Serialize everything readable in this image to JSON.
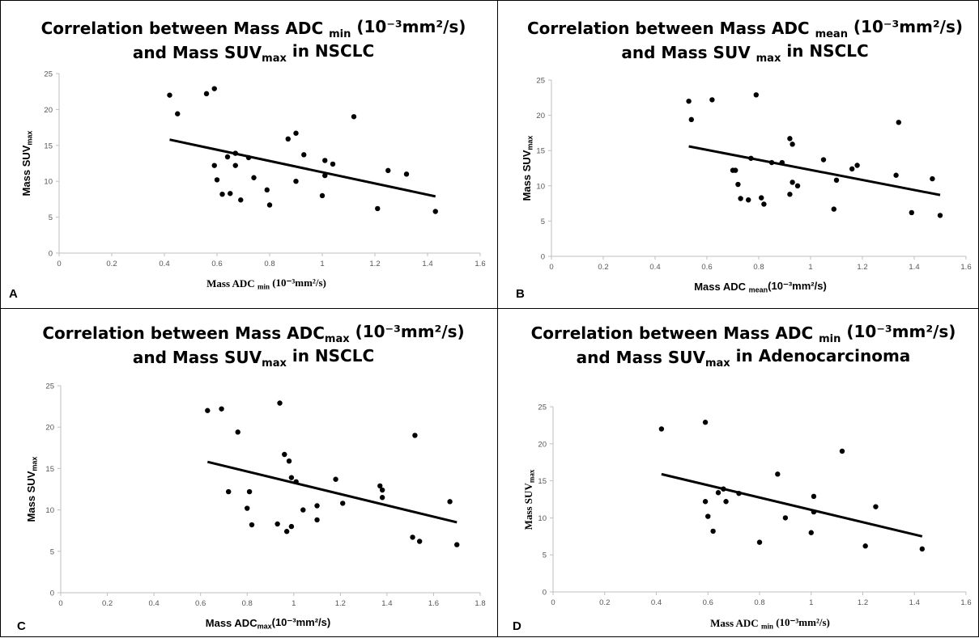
{
  "chart_data": [
    {
      "type": "scatter",
      "panel_letter": "A",
      "title": {
        "line1": [
          {
            "t": "Correlation between Mass ADC "
          },
          {
            "t": "min",
            "sub": true
          },
          {
            "t": "  (10⁻³mm²/s)"
          }
        ],
        "line2": [
          {
            "t": "and Mass SUV"
          },
          {
            "t": "max",
            "sub": true
          },
          {
            "t": " in NSCLC"
          }
        ]
      },
      "xlabel": [
        {
          "t": "Mass ADC "
        },
        {
          "t": "min",
          "sub": true
        },
        {
          "t": " (10⁻³mm²/s)"
        }
      ],
      "ylabel": [
        {
          "t": "Mass SUV"
        },
        {
          "t": "max",
          "sub": true
        }
      ],
      "xlabel_font": "serif",
      "xlim": [
        0,
        1.6
      ],
      "ylim": [
        0,
        25
      ],
      "xticks": [
        "0",
        "0.2",
        "0.4",
        "0.6",
        "0.8",
        "1",
        "1.2",
        "1.4",
        "1.6"
      ],
      "yticks": [
        "0",
        "5",
        "10",
        "15",
        "20",
        "25"
      ],
      "grid": false,
      "trendline": {
        "x": [
          0.42,
          1.43
        ],
        "y": [
          15.8,
          7.9
        ]
      },
      "points": [
        [
          0.42,
          22.0
        ],
        [
          0.45,
          19.4
        ],
        [
          0.56,
          22.2
        ],
        [
          0.59,
          22.9
        ],
        [
          0.59,
          12.2
        ],
        [
          0.6,
          10.2
        ],
        [
          0.62,
          8.2
        ],
        [
          0.64,
          13.4
        ],
        [
          0.65,
          8.3
        ],
        [
          0.67,
          13.9
        ],
        [
          0.67,
          12.2
        ],
        [
          0.69,
          7.4
        ],
        [
          0.72,
          13.3
        ],
        [
          0.74,
          10.5
        ],
        [
          0.79,
          8.8
        ],
        [
          0.8,
          6.7
        ],
        [
          0.87,
          15.9
        ],
        [
          0.9,
          16.7
        ],
        [
          0.9,
          10.0
        ],
        [
          0.93,
          13.7
        ],
        [
          1.0,
          8.0
        ],
        [
          1.01,
          12.9
        ],
        [
          1.01,
          10.8
        ],
        [
          1.04,
          12.4
        ],
        [
          1.12,
          19.0
        ],
        [
          1.21,
          6.2
        ],
        [
          1.25,
          11.5
        ],
        [
          1.32,
          11.0
        ],
        [
          1.43,
          5.8
        ]
      ]
    },
    {
      "type": "scatter",
      "panel_letter": "B",
      "title": {
        "line1": [
          {
            "t": "Correlation between Mass ADC "
          },
          {
            "t": "mean",
            "sub": true
          },
          {
            "t": " (10⁻³mm²/s)"
          }
        ],
        "line2": [
          {
            "t": "and Mass SUV "
          },
          {
            "t": "max",
            "sub": true
          },
          {
            "t": " in NSCLC"
          }
        ]
      },
      "xlabel": [
        {
          "t": "Mass ADC "
        },
        {
          "t": "mean",
          "sub": true
        },
        {
          "t": "(10⁻³mm²/s)"
        }
      ],
      "ylabel": [
        {
          "t": "Mass SUV"
        },
        {
          "t": "max",
          "sub": true
        }
      ],
      "xlabel_font": "sans",
      "xlim": [
        0,
        1.6
      ],
      "ylim": [
        0,
        25
      ],
      "xticks": [
        "0",
        "0.2",
        "0.4",
        "0.6",
        "0.8",
        "1",
        "1.2",
        "1.4",
        "1.6"
      ],
      "yticks": [
        "0",
        "5",
        "10",
        "15",
        "20",
        "25"
      ],
      "grid": false,
      "trendline": {
        "x": [
          0.53,
          1.5
        ],
        "y": [
          15.6,
          8.7
        ]
      },
      "points": [
        [
          0.53,
          22.0
        ],
        [
          0.54,
          19.4
        ],
        [
          0.62,
          22.2
        ],
        [
          0.79,
          22.9
        ],
        [
          0.7,
          12.2
        ],
        [
          0.71,
          12.2
        ],
        [
          0.72,
          10.2
        ],
        [
          0.73,
          8.2
        ],
        [
          0.76,
          8.0
        ],
        [
          0.77,
          13.9
        ],
        [
          0.81,
          8.3
        ],
        [
          0.82,
          7.4
        ],
        [
          0.85,
          13.3
        ],
        [
          0.89,
          13.3
        ],
        [
          0.92,
          16.7
        ],
        [
          0.93,
          15.9
        ],
        [
          0.92,
          8.8
        ],
        [
          0.93,
          10.5
        ],
        [
          0.95,
          10.0
        ],
        [
          1.05,
          13.7
        ],
        [
          1.09,
          6.7
        ],
        [
          1.1,
          10.8
        ],
        [
          1.16,
          12.4
        ],
        [
          1.18,
          12.9
        ],
        [
          1.33,
          11.5
        ],
        [
          1.34,
          19.0
        ],
        [
          1.39,
          6.2
        ],
        [
          1.47,
          11.0
        ],
        [
          1.5,
          5.8
        ]
      ]
    },
    {
      "type": "scatter",
      "panel_letter": "C",
      "title": {
        "line1": [
          {
            "t": "Correlation between Mass ADC"
          },
          {
            "t": "max",
            "sub": true
          },
          {
            "t": " (10⁻³mm²/s)"
          }
        ],
        "line2": [
          {
            "t": "and Mass SUV"
          },
          {
            "t": "max",
            "sub": true
          },
          {
            "t": " in NSCLC"
          }
        ]
      },
      "xlabel": [
        {
          "t": "Mass ADC"
        },
        {
          "t": "max",
          "sub": true
        },
        {
          "t": "(10⁻³mm²/s)"
        }
      ],
      "ylabel": [
        {
          "t": "Mass SUV"
        },
        {
          "t": "max",
          "sub": true
        }
      ],
      "xlabel_font": "sans",
      "xlim": [
        0,
        1.8
      ],
      "ylim": [
        0,
        25
      ],
      "xticks": [
        "0",
        "0.2",
        "0.4",
        "0.6",
        "0.8",
        "1",
        "1.2",
        "1.4",
        "1.6",
        "1.8"
      ],
      "yticks": [
        "0",
        "5",
        "10",
        "15",
        "20",
        "25"
      ],
      "grid": false,
      "trendline": {
        "x": [
          0.63,
          1.7
        ],
        "y": [
          15.8,
          8.5
        ]
      },
      "points": [
        [
          0.63,
          22.0
        ],
        [
          0.69,
          22.2
        ],
        [
          0.72,
          12.2
        ],
        [
          0.76,
          19.4
        ],
        [
          0.8,
          10.2
        ],
        [
          0.81,
          12.2
        ],
        [
          0.82,
          8.2
        ],
        [
          0.93,
          8.3
        ],
        [
          0.94,
          22.9
        ],
        [
          0.96,
          16.7
        ],
        [
          0.97,
          7.4
        ],
        [
          0.98,
          15.9
        ],
        [
          0.99,
          13.9
        ],
        [
          0.99,
          8.0
        ],
        [
          1.01,
          13.4
        ],
        [
          1.04,
          10.0
        ],
        [
          1.1,
          8.8
        ],
        [
          1.1,
          10.5
        ],
        [
          1.18,
          13.7
        ],
        [
          1.21,
          10.8
        ],
        [
          1.37,
          12.9
        ],
        [
          1.38,
          12.4
        ],
        [
          1.38,
          11.5
        ],
        [
          1.51,
          6.7
        ],
        [
          1.52,
          19.0
        ],
        [
          1.54,
          6.2
        ],
        [
          1.67,
          11.0
        ],
        [
          1.7,
          5.8
        ]
      ]
    },
    {
      "type": "scatter",
      "panel_letter": "D",
      "title": {
        "line1": [
          {
            "t": "Correlation between Mass ADC "
          },
          {
            "t": "min",
            "sub": true
          },
          {
            "t": " (10⁻³mm²/s)"
          }
        ],
        "line2": [
          {
            "t": "and Mass SUV"
          },
          {
            "t": "max",
            "sub": true
          },
          {
            "t": " in Adenocarcinoma"
          }
        ]
      },
      "xlabel": [
        {
          "t": "Mass ADC "
        },
        {
          "t": "min",
          "sub": true
        },
        {
          "t": " (10⁻³mm²/s)"
        }
      ],
      "ylabel": [
        {
          "t": "Mass SUV"
        },
        {
          "t": "max",
          "sub": true
        }
      ],
      "xlabel_font": "serif",
      "xlim": [
        0,
        1.6
      ],
      "ylim": [
        0,
        25
      ],
      "xticks": [
        "0",
        "0.2",
        "0.4",
        "0.6",
        "0.8",
        "1",
        "1.2",
        "1.4",
        "1.6"
      ],
      "yticks": [
        "0",
        "5",
        "10",
        "15",
        "20",
        "25"
      ],
      "grid": false,
      "trendline": {
        "x": [
          0.42,
          1.43
        ],
        "y": [
          15.9,
          7.5
        ]
      },
      "points": [
        [
          0.42,
          22.0
        ],
        [
          0.59,
          22.9
        ],
        [
          0.59,
          12.2
        ],
        [
          0.6,
          10.2
        ],
        [
          0.62,
          8.2
        ],
        [
          0.64,
          13.4
        ],
        [
          0.66,
          13.9
        ],
        [
          0.67,
          12.2
        ],
        [
          0.72,
          13.3
        ],
        [
          0.8,
          6.7
        ],
        [
          0.87,
          15.9
        ],
        [
          0.9,
          10.0
        ],
        [
          1.0,
          8.0
        ],
        [
          1.01,
          12.9
        ],
        [
          1.01,
          10.8
        ],
        [
          1.12,
          19.0
        ],
        [
          1.21,
          6.2
        ],
        [
          1.25,
          11.5
        ],
        [
          1.43,
          5.8
        ]
      ]
    }
  ]
}
